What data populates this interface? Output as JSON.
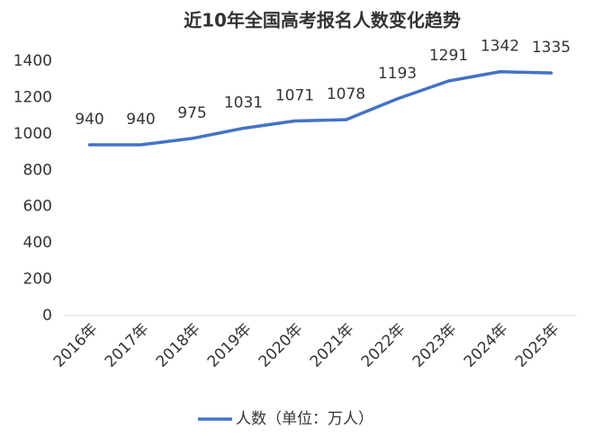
{
  "chart_data": {
    "type": "line",
    "title": "近10年全国高考报名人数变化趋势",
    "categories": [
      "2016年",
      "2017年",
      "2018年",
      "2019年",
      "2020年",
      "2021年",
      "2022年",
      "2023年",
      "2024年",
      "2025年"
    ],
    "series": [
      {
        "name": "人数（单位：万人）",
        "color": "#4472c4",
        "values": [
          940,
          940,
          975,
          1031,
          1071,
          1078,
          1193,
          1291,
          1342,
          1335
        ]
      }
    ],
    "ylim": [
      0,
      1400
    ],
    "yticks": [
      0,
      200,
      400,
      600,
      800,
      1000,
      1200,
      1400
    ],
    "grid": false,
    "legend": "bottom",
    "data_labels": true
  }
}
